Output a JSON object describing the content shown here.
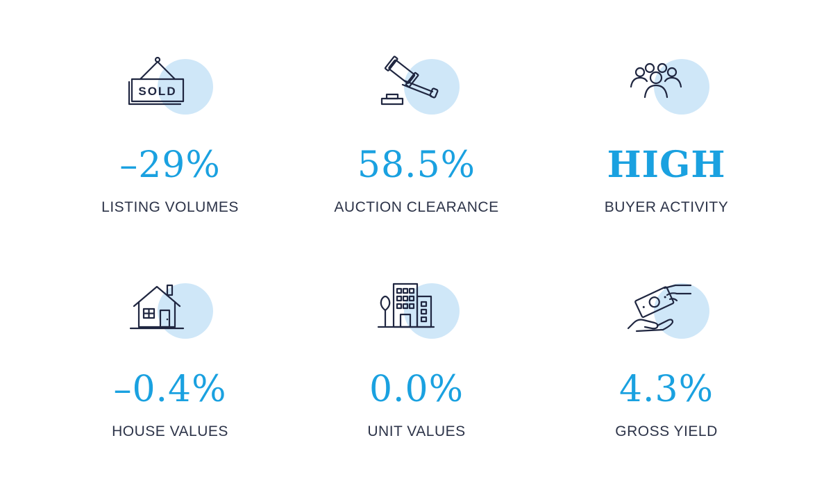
{
  "stats": [
    {
      "icon": "sold-sign-icon",
      "value": "–29%",
      "label": "LISTING VOLUMES",
      "sign_text": "SOLD"
    },
    {
      "icon": "auction-gavel-icon",
      "value": "58.5%",
      "label": "AUCTION CLEARANCE"
    },
    {
      "icon": "buyers-group-icon",
      "value": "HIGH",
      "label": "BUYER ACTIVITY"
    },
    {
      "icon": "house-icon",
      "value": "–0.4%",
      "label": "HOUSE VALUES"
    },
    {
      "icon": "apartment-building-icon",
      "value": "0.0%",
      "label": "UNIT VALUES"
    },
    {
      "icon": "cash-in-hand-icon",
      "value": "4.3%",
      "label": "GROSS YIELD"
    }
  ],
  "colors": {
    "accent": "#1aa1e0",
    "icon_circle": "#cfe7f8",
    "text": "#2c3348",
    "icon_stroke": "#1f2640"
  }
}
